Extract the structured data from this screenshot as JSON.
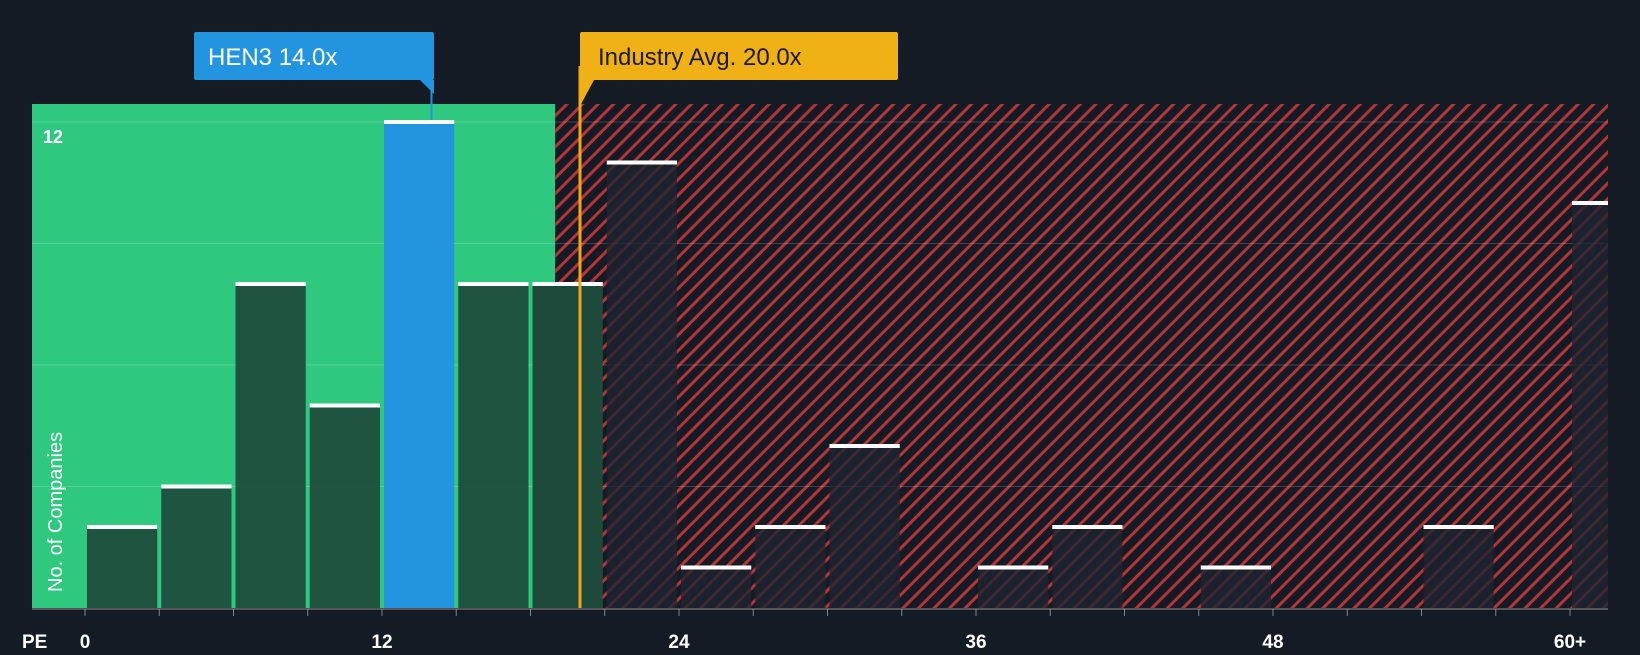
{
  "chart_data": {
    "type": "bar",
    "xlabel": "PE",
    "ylabel": "No. of Companies",
    "ylim": [
      0,
      12.4
    ],
    "xlim": [
      0,
      61
    ],
    "bin_width": 3,
    "x_ticks": [
      {
        "value": 0,
        "label": "0"
      },
      {
        "value": 12,
        "label": "12"
      },
      {
        "value": 24,
        "label": "24"
      },
      {
        "value": 36,
        "label": "36"
      },
      {
        "value": 48,
        "label": "48"
      },
      {
        "value": 60,
        "label": "60+"
      }
    ],
    "y_ticks": [
      {
        "value": 12,
        "label": "12"
      }
    ],
    "gridlines": [
      3,
      6,
      9,
      12
    ],
    "bins": [
      {
        "start": 0,
        "count": 2
      },
      {
        "start": 3,
        "count": 3
      },
      {
        "start": 6,
        "count": 8
      },
      {
        "start": 9,
        "count": 5
      },
      {
        "start": 12,
        "count": 12,
        "highlight": true
      },
      {
        "start": 15,
        "count": 8
      },
      {
        "start": 18,
        "count": 8
      },
      {
        "start": 21,
        "count": 11
      },
      {
        "start": 24,
        "count": 1
      },
      {
        "start": 27,
        "count": 2
      },
      {
        "start": 30,
        "count": 4
      },
      {
        "start": 33,
        "count": 0
      },
      {
        "start": 36,
        "count": 1
      },
      {
        "start": 39,
        "count": 2
      },
      {
        "start": 42,
        "count": 0
      },
      {
        "start": 45,
        "count": 1
      },
      {
        "start": 48,
        "count": 0
      },
      {
        "start": 51,
        "count": 0
      },
      {
        "start": 54,
        "count": 2
      },
      {
        "start": 57,
        "count": 0
      },
      {
        "start": 60,
        "count": 10
      }
    ],
    "company": {
      "label": "HEN3 14.0x",
      "value": 14.0
    },
    "industry": {
      "label": "Industry Avg. 20.0x",
      "value": 20.0
    },
    "fair_zone_end": 19,
    "colors": {
      "background": "#151b24",
      "fair_zone": "#2fc87f",
      "bar_dark": "#1e4a3c",
      "highlight_bar": "#2394e0",
      "hatch": "#d0383a",
      "company_label_bg": "#2394e0",
      "industry_label_bg": "#f0b116",
      "industry_line": "#f0a51a",
      "bar_cap": "#ffffff",
      "axis_text": "#ffffff"
    }
  }
}
